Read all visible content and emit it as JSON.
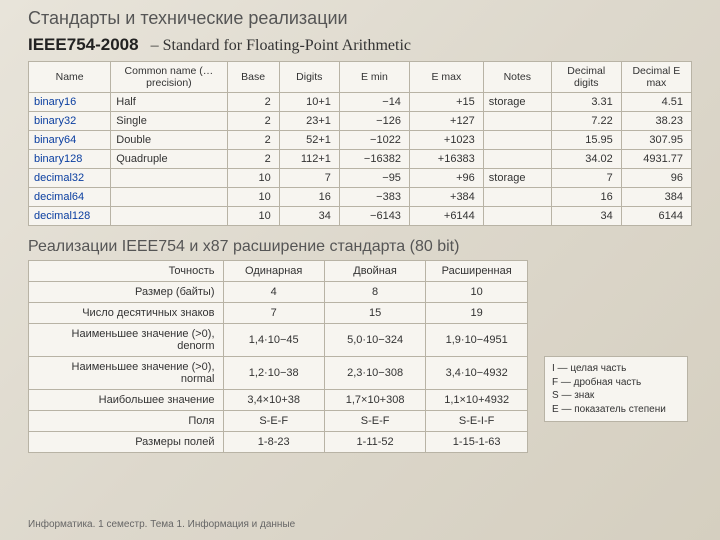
{
  "title": "Стандарты и технические реализации",
  "ieee": "IEEE754-2008",
  "subtitle": "– Standard for Floating-Point Arithmetic",
  "table1": {
    "columns": [
      "Name",
      "Common name (…precision)",
      "Base",
      "Digits",
      "E min",
      "E max",
      "Notes",
      "Decimal digits",
      "Decimal E max"
    ],
    "rows": [
      [
        "binary16",
        "Half",
        "2",
        "10+1",
        "−14",
        "+15",
        "storage",
        "3.31",
        "4.51"
      ],
      [
        "binary32",
        "Single",
        "2",
        "23+1",
        "−126",
        "+127",
        "",
        "7.22",
        "38.23"
      ],
      [
        "binary64",
        "Double",
        "2",
        "52+1",
        "−1022",
        "+1023",
        "",
        "15.95",
        "307.95"
      ],
      [
        "binary128",
        "Quadruple",
        "2",
        "112+1",
        "−16382",
        "+16383",
        "",
        "34.02",
        "4931.77"
      ],
      [
        "decimal32",
        "",
        "10",
        "7",
        "−95",
        "+96",
        "storage",
        "7",
        "96"
      ],
      [
        "decimal64",
        "",
        "10",
        "16",
        "−383",
        "+384",
        "",
        "16",
        "384"
      ],
      [
        "decimal128",
        "",
        "10",
        "34",
        "−6143",
        "+6144",
        "",
        "34",
        "6144"
      ]
    ],
    "col_widths": [
      "72px",
      "108px",
      "42px",
      "50px",
      "60px",
      "64px",
      "58px",
      "60px",
      "60px"
    ]
  },
  "section2": "Реализации IEEE754 и x87 расширение стандарта (80 bit)",
  "table2": {
    "header": [
      "Точность",
      "Одинарная",
      "Двойная",
      "Расширенная"
    ],
    "rows": [
      [
        "Размер (байты)",
        "4",
        "8",
        "10"
      ],
      [
        "Число десятичных знаков",
        "7",
        "15",
        "19"
      ],
      [
        "Наименьшее значение (>0), denorm",
        "1,4·10−45",
        "5,0·10−324",
        "1,9·10−4951"
      ],
      [
        "Наименьшее значение (>0), normal",
        "1,2·10−38",
        "2,3·10−308",
        "3,4·10−4932"
      ],
      [
        "Наибольшее значение",
        "3,4×10+38",
        "1,7×10+308",
        "1,1×10+4932"
      ],
      [
        "Поля",
        "S-E-F",
        "S-E-F",
        "S-E-I-F"
      ],
      [
        "Размеры полей",
        "1-8-23",
        "1-11-52",
        "1-15-1-63"
      ]
    ]
  },
  "legend": {
    "l1": "I — целая часть",
    "l2": "F — дробная часть",
    "l3": "S — знак",
    "l4": "E — показатель степени"
  },
  "footer": "Информатика. 1 семестр. Тема 1. Информация и данные",
  "colors": {
    "border": "#b8b3a5",
    "link": "#0a3ea0",
    "text": "#333",
    "grey": "#555"
  }
}
